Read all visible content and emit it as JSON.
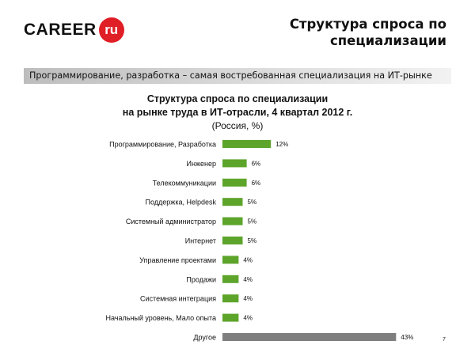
{
  "logo": {
    "word": "CAREER",
    "badge": "ru"
  },
  "slide_title": [
    "Структура спроса по",
    "специализации"
  ],
  "banner": "Программирование, разработка – самая востребованная специализация на ИТ-рынке",
  "colors": {
    "bar": "#5da42b",
    "bar_other": "#7f7f7f",
    "logo_badge": "#e01e26"
  },
  "page_number": "7",
  "chart_data": {
    "type": "bar",
    "orientation": "horizontal",
    "title": [
      "Структура спроса по специализации",
      "на рынке труда в ИТ-отрасли, 4 квартал 2012 г."
    ],
    "subtitle": "(Россия, %)",
    "categories": [
      "Программирование, Разработка",
      "Инженер",
      "Телекоммуникации",
      "Поддержка, Helpdesk",
      "Системный администратор",
      "Интернет",
      "Управление проектами",
      "Продажи",
      "Системная интеграция",
      "Начальный уровень, Мало опыта",
      "Другое"
    ],
    "values": [
      12,
      6,
      6,
      5,
      5,
      5,
      4,
      4,
      4,
      4,
      43
    ],
    "data_labels": [
      "12%",
      "6%",
      "6%",
      "5%",
      "5%",
      "5%",
      "4%",
      "4%",
      "4%",
      "4%",
      "43%"
    ],
    "bar_colors": [
      "bar",
      "bar",
      "bar",
      "bar",
      "bar",
      "bar",
      "bar",
      "bar",
      "bar",
      "bar",
      "bar_other"
    ],
    "grid": false,
    "legend": "none"
  }
}
